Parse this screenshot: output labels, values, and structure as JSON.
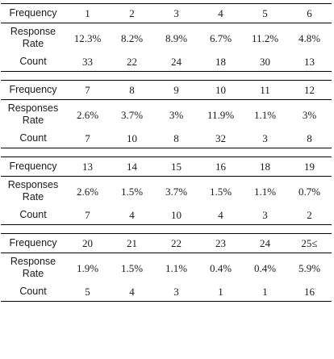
{
  "tables": [
    {
      "freq_label": "Frequency",
      "rate_label": "Response\nRate",
      "count_label": "Count",
      "frequency": [
        "1",
        "2",
        "3",
        "4",
        "5",
        "6"
      ],
      "rate": [
        "12.3%",
        "8.2%",
        "8.9%",
        "6.7%",
        "11.2%",
        "4.8%"
      ],
      "count": [
        "33",
        "22",
        "24",
        "18",
        "30",
        "13"
      ]
    },
    {
      "freq_label": "Frequency",
      "rate_label": "Responses\nRate",
      "count_label": "Count",
      "frequency": [
        "7",
        "8",
        "9",
        "10",
        "11",
        "12"
      ],
      "rate": [
        "2.6%",
        "3.7%",
        "3%",
        "11.9%",
        "1.1%",
        "3%"
      ],
      "count": [
        "7",
        "10",
        "8",
        "32",
        "3",
        "8"
      ]
    },
    {
      "freq_label": "Frequency",
      "rate_label": "Responses\nRate",
      "count_label": "Count",
      "frequency": [
        "13",
        "14",
        "15",
        "16",
        "18",
        "19"
      ],
      "rate": [
        "2.6%",
        "1.5%",
        "3.7%",
        "1.5%",
        "1.1%",
        "0.7%"
      ],
      "count": [
        "7",
        "4",
        "10",
        "4",
        "3",
        "2"
      ]
    },
    {
      "freq_label": "Frequency",
      "rate_label": "Response\nRate",
      "count_label": "Count",
      "frequency": [
        "20",
        "21",
        "22",
        "23",
        "24",
        "25≤"
      ],
      "rate": [
        "1.9%",
        "1.5%",
        "1.1%",
        "0.4%",
        "0.4%",
        "5.9%"
      ],
      "count": [
        "5",
        "4",
        "3",
        "1",
        "1",
        "16"
      ]
    }
  ]
}
